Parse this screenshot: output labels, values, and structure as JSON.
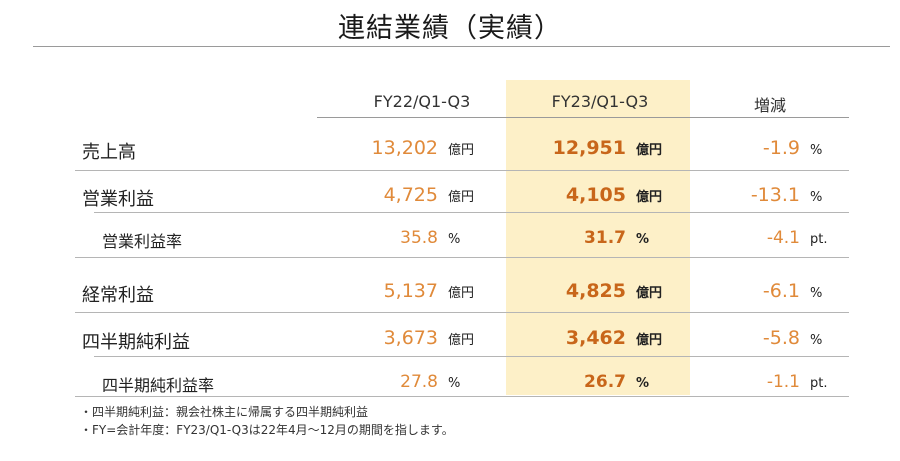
{
  "title": "連結業績（実績）",
  "columns": {
    "prev": "FY22/Q1-Q3",
    "curr": "FY23/Q1-Q3",
    "change": "増減"
  },
  "rows": [
    {
      "label": "売上高",
      "prev": "13,202",
      "prev_unit": "億円",
      "curr": "12,951",
      "curr_unit": "億円",
      "change": "-1.9",
      "change_unit": "%"
    },
    {
      "label": "営業利益",
      "prev": "4,725",
      "prev_unit": "億円",
      "curr": "4,105",
      "curr_unit": "億円",
      "change": "-13.1",
      "change_unit": "%"
    },
    {
      "label": "営業利益率",
      "prev": "35.8",
      "prev_unit": "%",
      "curr": "31.7",
      "curr_unit": "%",
      "change": "-4.1",
      "change_unit": "pt."
    },
    {
      "label": "経常利益",
      "prev": "5,137",
      "prev_unit": "億円",
      "curr": "4,825",
      "curr_unit": "億円",
      "change": "-6.1",
      "change_unit": "%"
    },
    {
      "label": "四半期純利益",
      "prev": "3,673",
      "prev_unit": "億円",
      "curr": "3,462",
      "curr_unit": "億円",
      "change": "-5.8",
      "change_unit": "%"
    },
    {
      "label": "四半期純利益率",
      "prev": "27.8",
      "prev_unit": "%",
      "curr": "26.7",
      "curr_unit": "%",
      "change": "-1.1",
      "change_unit": "pt."
    }
  ],
  "footnotes": [
    "・四半期純利益：親会社株主に帰属する四半期純利益",
    "・FY=会計年度：FY23/Q1-Q3は22年4月～12月の期間を指します。"
  ],
  "colors": {
    "highlight": "#fdf0c8",
    "value_orange": "#e08a3a",
    "value_bold_orange": "#c8661a"
  }
}
